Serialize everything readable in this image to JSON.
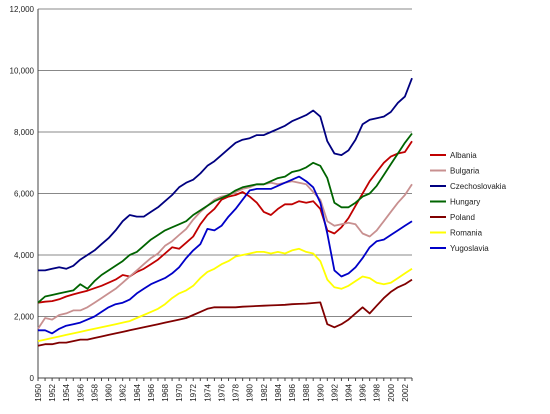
{
  "chart_data": {
    "type": "line",
    "title": "",
    "xlabel": "",
    "ylabel": "",
    "ylim": [
      0,
      12000
    ],
    "xlim": [
      1950,
      2003
    ],
    "grid": "horizontal",
    "legend_position": "right",
    "y_ticks": [
      "0",
      "2,000",
      "4,000",
      "6,000",
      "8,000",
      "10,000",
      "12,000"
    ],
    "y_tick_values": [
      0,
      2000,
      4000,
      6000,
      8000,
      10000,
      12000
    ],
    "x_ticks": [
      "1950",
      "1952",
      "1954",
      "1956",
      "1958",
      "1960",
      "1962",
      "1964",
      "1966",
      "1968",
      "1970",
      "1972",
      "1974",
      "1976",
      "1978",
      "1980",
      "1982",
      "1984",
      "1986",
      "1988",
      "1990",
      "1992",
      "1994",
      "1996",
      "1998",
      "2000",
      "2002"
    ],
    "x_tick_values": [
      1950,
      1952,
      1954,
      1956,
      1958,
      1960,
      1962,
      1964,
      1966,
      1968,
      1970,
      1972,
      1974,
      1976,
      1978,
      1980,
      1982,
      1984,
      1986,
      1988,
      1990,
      1992,
      1994,
      1996,
      1998,
      2000,
      2002
    ],
    "x": [
      1950,
      1951,
      1952,
      1953,
      1954,
      1955,
      1956,
      1957,
      1958,
      1959,
      1960,
      1961,
      1962,
      1963,
      1964,
      1965,
      1966,
      1967,
      1968,
      1969,
      1970,
      1971,
      1972,
      1973,
      1974,
      1975,
      1976,
      1977,
      1978,
      1979,
      1980,
      1981,
      1982,
      1983,
      1984,
      1985,
      1986,
      1987,
      1988,
      1989,
      1990,
      1991,
      1992,
      1993,
      1994,
      1995,
      1996,
      1997,
      1998,
      1999,
      2000,
      2001,
      2002,
      2003
    ],
    "series": [
      {
        "name": "Albania",
        "color": "#c00000",
        "values": [
          2450,
          2480,
          2500,
          2560,
          2650,
          2720,
          2780,
          2840,
          2920,
          3000,
          3100,
          3200,
          3350,
          3300,
          3450,
          3550,
          3700,
          3850,
          4050,
          4250,
          4200,
          4400,
          4600,
          5000,
          5300,
          5500,
          5800,
          5900,
          5950,
          6050,
          5900,
          5700,
          5400,
          5300,
          5500,
          5650,
          5650,
          5750,
          5700,
          5750,
          5500,
          4800,
          4700,
          4900,
          5200,
          5600,
          6000,
          6400,
          6700,
          7000,
          7200,
          7300,
          7350,
          7700
        ]
      },
      {
        "name": "Bulgaria",
        "color": "#c89090",
        "values": [
          1600,
          1950,
          1900,
          2050,
          2100,
          2200,
          2200,
          2300,
          2450,
          2600,
          2750,
          2900,
          3100,
          3300,
          3500,
          3700,
          3900,
          4050,
          4300,
          4450,
          4650,
          4850,
          5150,
          5400,
          5600,
          5800,
          5900,
          5950,
          6050,
          6150,
          6200,
          6300,
          6300,
          6350,
          6300,
          6350,
          6400,
          6350,
          6300,
          6050,
          5800,
          5100,
          4950,
          5000,
          5050,
          5000,
          4700,
          4600,
          4800,
          5100,
          5400,
          5700,
          5950,
          6300
        ]
      },
      {
        "name": "Czechoslovakia",
        "color": "#000080",
        "values": [
          3500,
          3500,
          3550,
          3600,
          3550,
          3650,
          3850,
          4000,
          4150,
          4350,
          4550,
          4800,
          5100,
          5300,
          5250,
          5250,
          5400,
          5550,
          5750,
          5950,
          6200,
          6350,
          6450,
          6650,
          6900,
          7050,
          7250,
          7450,
          7650,
          7750,
          7800,
          7900,
          7900,
          8000,
          8100,
          8200,
          8350,
          8450,
          8550,
          8700,
          8500,
          7700,
          7300,
          7250,
          7400,
          7750,
          8250,
          8400,
          8450,
          8500,
          8650,
          8950,
          9150,
          9750
        ]
      },
      {
        "name": "Hungary",
        "color": "#006400",
        "values": [
          2450,
          2650,
          2700,
          2750,
          2800,
          2850,
          3050,
          2900,
          3150,
          3350,
          3500,
          3650,
          3800,
          4000,
          4100,
          4300,
          4500,
          4650,
          4800,
          4900,
          5000,
          5100,
          5300,
          5450,
          5600,
          5750,
          5850,
          5950,
          6100,
          6200,
          6250,
          6300,
          6300,
          6400,
          6500,
          6550,
          6700,
          6750,
          6850,
          7000,
          6900,
          6500,
          5700,
          5550,
          5550,
          5700,
          5900,
          6000,
          6250,
          6600,
          6950,
          7300,
          7650,
          7950
        ]
      },
      {
        "name": "Poland",
        "color": "#800000",
        "values": [
          1050,
          1100,
          1100,
          1150,
          1150,
          1200,
          1250,
          1250,
          1300,
          1350,
          1400,
          1450,
          1500,
          1550,
          1600,
          1650,
          1700,
          1750,
          1800,
          1850,
          1900,
          1950,
          2050,
          2150,
          2250,
          2300,
          2300,
          2300,
          2300,
          2320,
          2330,
          2340,
          2350,
          2360,
          2370,
          2380,
          2400,
          2410,
          2420,
          2440,
          2460,
          1750,
          1650,
          1750,
          1900,
          2100,
          2300,
          2100,
          2350,
          2600,
          2800,
          2950,
          3050,
          3200
        ]
      },
      {
        "name": "Romania",
        "color": "#ffff00",
        "values": [
          1200,
          1250,
          1300,
          1350,
          1400,
          1450,
          1500,
          1550,
          1600,
          1650,
          1700,
          1750,
          1800,
          1850,
          1950,
          2050,
          2150,
          2250,
          2400,
          2600,
          2750,
          2850,
          3000,
          3250,
          3450,
          3550,
          3700,
          3800,
          3950,
          4000,
          4050,
          4100,
          4100,
          4050,
          4100,
          4050,
          4150,
          4200,
          4100,
          4050,
          3800,
          3200,
          2950,
          2900,
          3000,
          3150,
          3300,
          3250,
          3100,
          3050,
          3100,
          3250,
          3400,
          3550
        ]
      },
      {
        "name": "Yugoslavia",
        "color": "#0000c8",
        "values": [
          1550,
          1550,
          1450,
          1600,
          1700,
          1750,
          1800,
          1900,
          2000,
          2150,
          2300,
          2400,
          2450,
          2550,
          2750,
          2900,
          3050,
          3150,
          3250,
          3400,
          3600,
          3900,
          4150,
          4350,
          4850,
          4800,
          4950,
          5250,
          5500,
          5800,
          6100,
          6150,
          6150,
          6150,
          6250,
          6350,
          6450,
          6550,
          6400,
          6200,
          5700,
          4700,
          3500,
          3300,
          3400,
          3600,
          3900,
          4250,
          4450,
          4500,
          4650,
          4800,
          4950,
          5100
        ]
      }
    ]
  }
}
